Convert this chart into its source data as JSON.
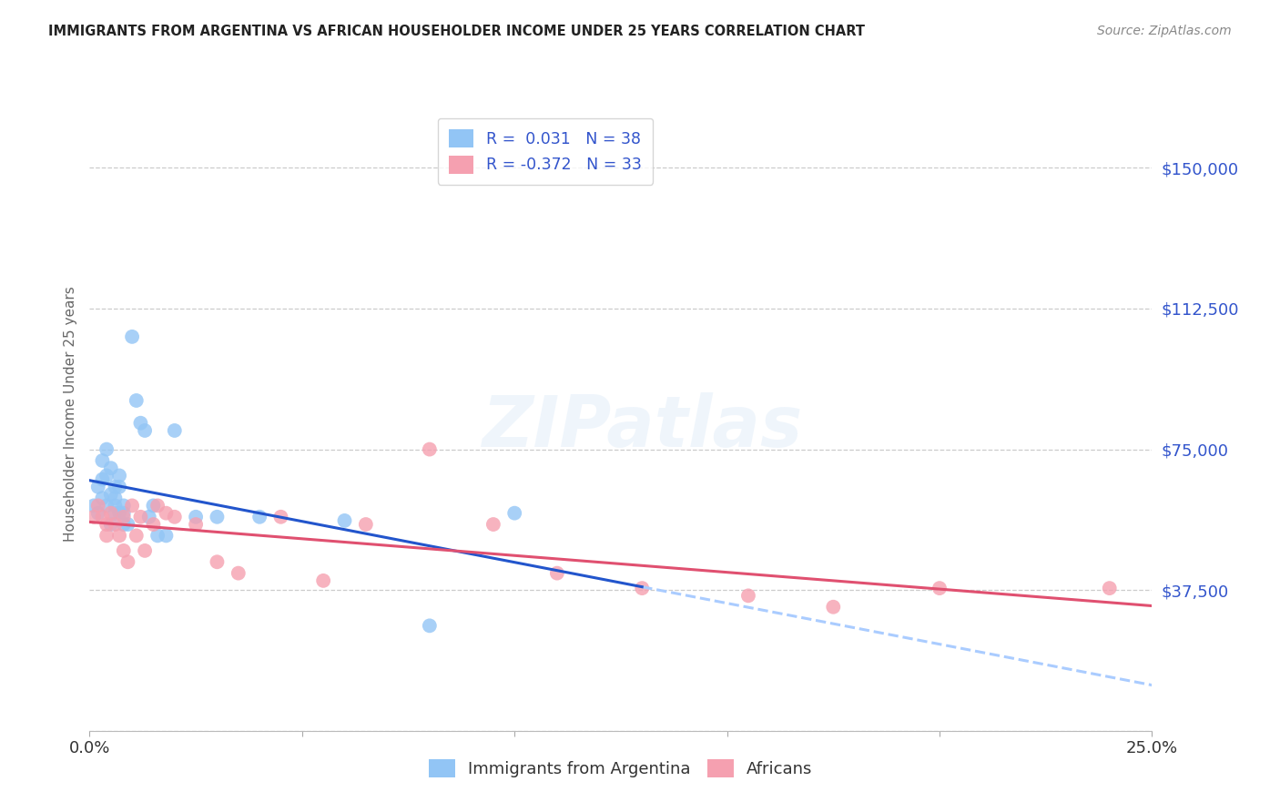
{
  "title": "IMMIGRANTS FROM ARGENTINA VS AFRICAN HOUSEHOLDER INCOME UNDER 25 YEARS CORRELATION CHART",
  "source": "Source: ZipAtlas.com",
  "ylabel": "Householder Income Under 25 years",
  "xlim": [
    0.0,
    0.25
  ],
  "ylim": [
    0,
    168750
  ],
  "yticks": [
    0,
    37500,
    75000,
    112500,
    150000
  ],
  "ytick_labels": [
    "",
    "$37,500",
    "$75,000",
    "$112,500",
    "$150,000"
  ],
  "xticks": [
    0.0,
    0.05,
    0.1,
    0.15,
    0.2,
    0.25
  ],
  "xtick_labels": [
    "0.0%",
    "",
    "",
    "",
    "",
    "25.0%"
  ],
  "blue_color": "#92c5f5",
  "pink_color": "#f5a0b0",
  "trend_blue_solid_color": "#2255cc",
  "trend_blue_dash_color": "#aaccff",
  "trend_pink_color": "#e05070",
  "axis_label_color": "#3355cc",
  "title_color": "#222222",
  "source_color": "#888888",
  "grid_color": "#cccccc",
  "background_color": "#ffffff",
  "legend_label1": "R =  0.031   N = 38",
  "legend_label2": "R = -0.372   N = 33",
  "watermark": "ZIPatlas",
  "legend_label_bottom1": "Immigrants from Argentina",
  "legend_label_bottom2": "Africans",
  "argentina_x": [
    0.001,
    0.002,
    0.002,
    0.003,
    0.003,
    0.003,
    0.004,
    0.004,
    0.004,
    0.005,
    0.005,
    0.005,
    0.006,
    0.006,
    0.006,
    0.006,
    0.007,
    0.007,
    0.007,
    0.008,
    0.008,
    0.008,
    0.009,
    0.01,
    0.011,
    0.012,
    0.013,
    0.014,
    0.015,
    0.016,
    0.018,
    0.02,
    0.025,
    0.03,
    0.04,
    0.06,
    0.08,
    0.1
  ],
  "argentina_y": [
    60000,
    65000,
    58000,
    72000,
    62000,
    67000,
    60000,
    68000,
    75000,
    55000,
    70000,
    63000,
    60000,
    65000,
    58000,
    62000,
    65000,
    68000,
    58000,
    60000,
    58000,
    55000,
    55000,
    105000,
    88000,
    82000,
    80000,
    57000,
    60000,
    52000,
    52000,
    80000,
    57000,
    57000,
    57000,
    56000,
    28000,
    58000
  ],
  "africans_x": [
    0.001,
    0.002,
    0.003,
    0.004,
    0.004,
    0.005,
    0.006,
    0.007,
    0.008,
    0.008,
    0.009,
    0.01,
    0.011,
    0.012,
    0.013,
    0.015,
    0.016,
    0.018,
    0.02,
    0.025,
    0.03,
    0.035,
    0.045,
    0.055,
    0.065,
    0.08,
    0.095,
    0.11,
    0.13,
    0.155,
    0.175,
    0.2,
    0.24
  ],
  "africans_y": [
    57000,
    60000,
    57000,
    55000,
    52000,
    58000,
    55000,
    52000,
    57000,
    48000,
    45000,
    60000,
    52000,
    57000,
    48000,
    55000,
    60000,
    58000,
    57000,
    55000,
    45000,
    42000,
    57000,
    40000,
    55000,
    75000,
    55000,
    42000,
    38000,
    36000,
    33000,
    38000,
    38000
  ]
}
